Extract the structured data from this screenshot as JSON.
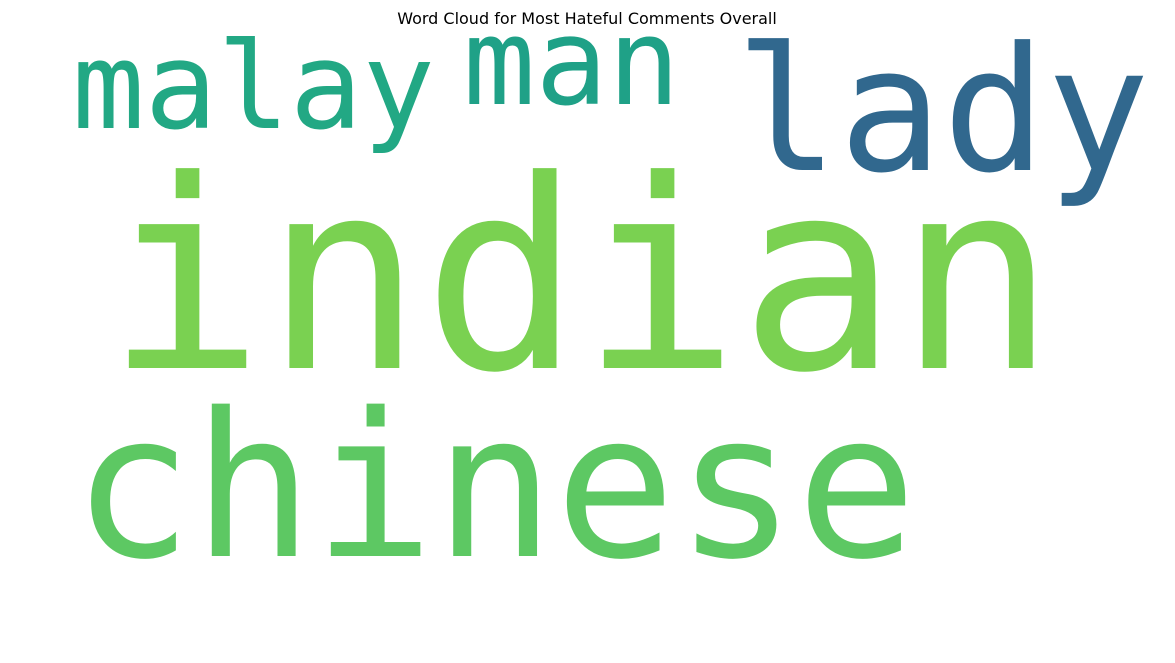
{
  "chart_data": {
    "type": "wordcloud",
    "title": "Word Cloud for Most Hateful Comments Overall",
    "words": [
      {
        "text": "indian",
        "color": "#7AD151"
      },
      {
        "text": "chinese",
        "color": "#5DC863"
      },
      {
        "text": "lady",
        "color": "#31688E"
      },
      {
        "text": "malay",
        "color": "#22A884"
      },
      {
        "text": "man",
        "color": "#1FA187"
      }
    ]
  }
}
